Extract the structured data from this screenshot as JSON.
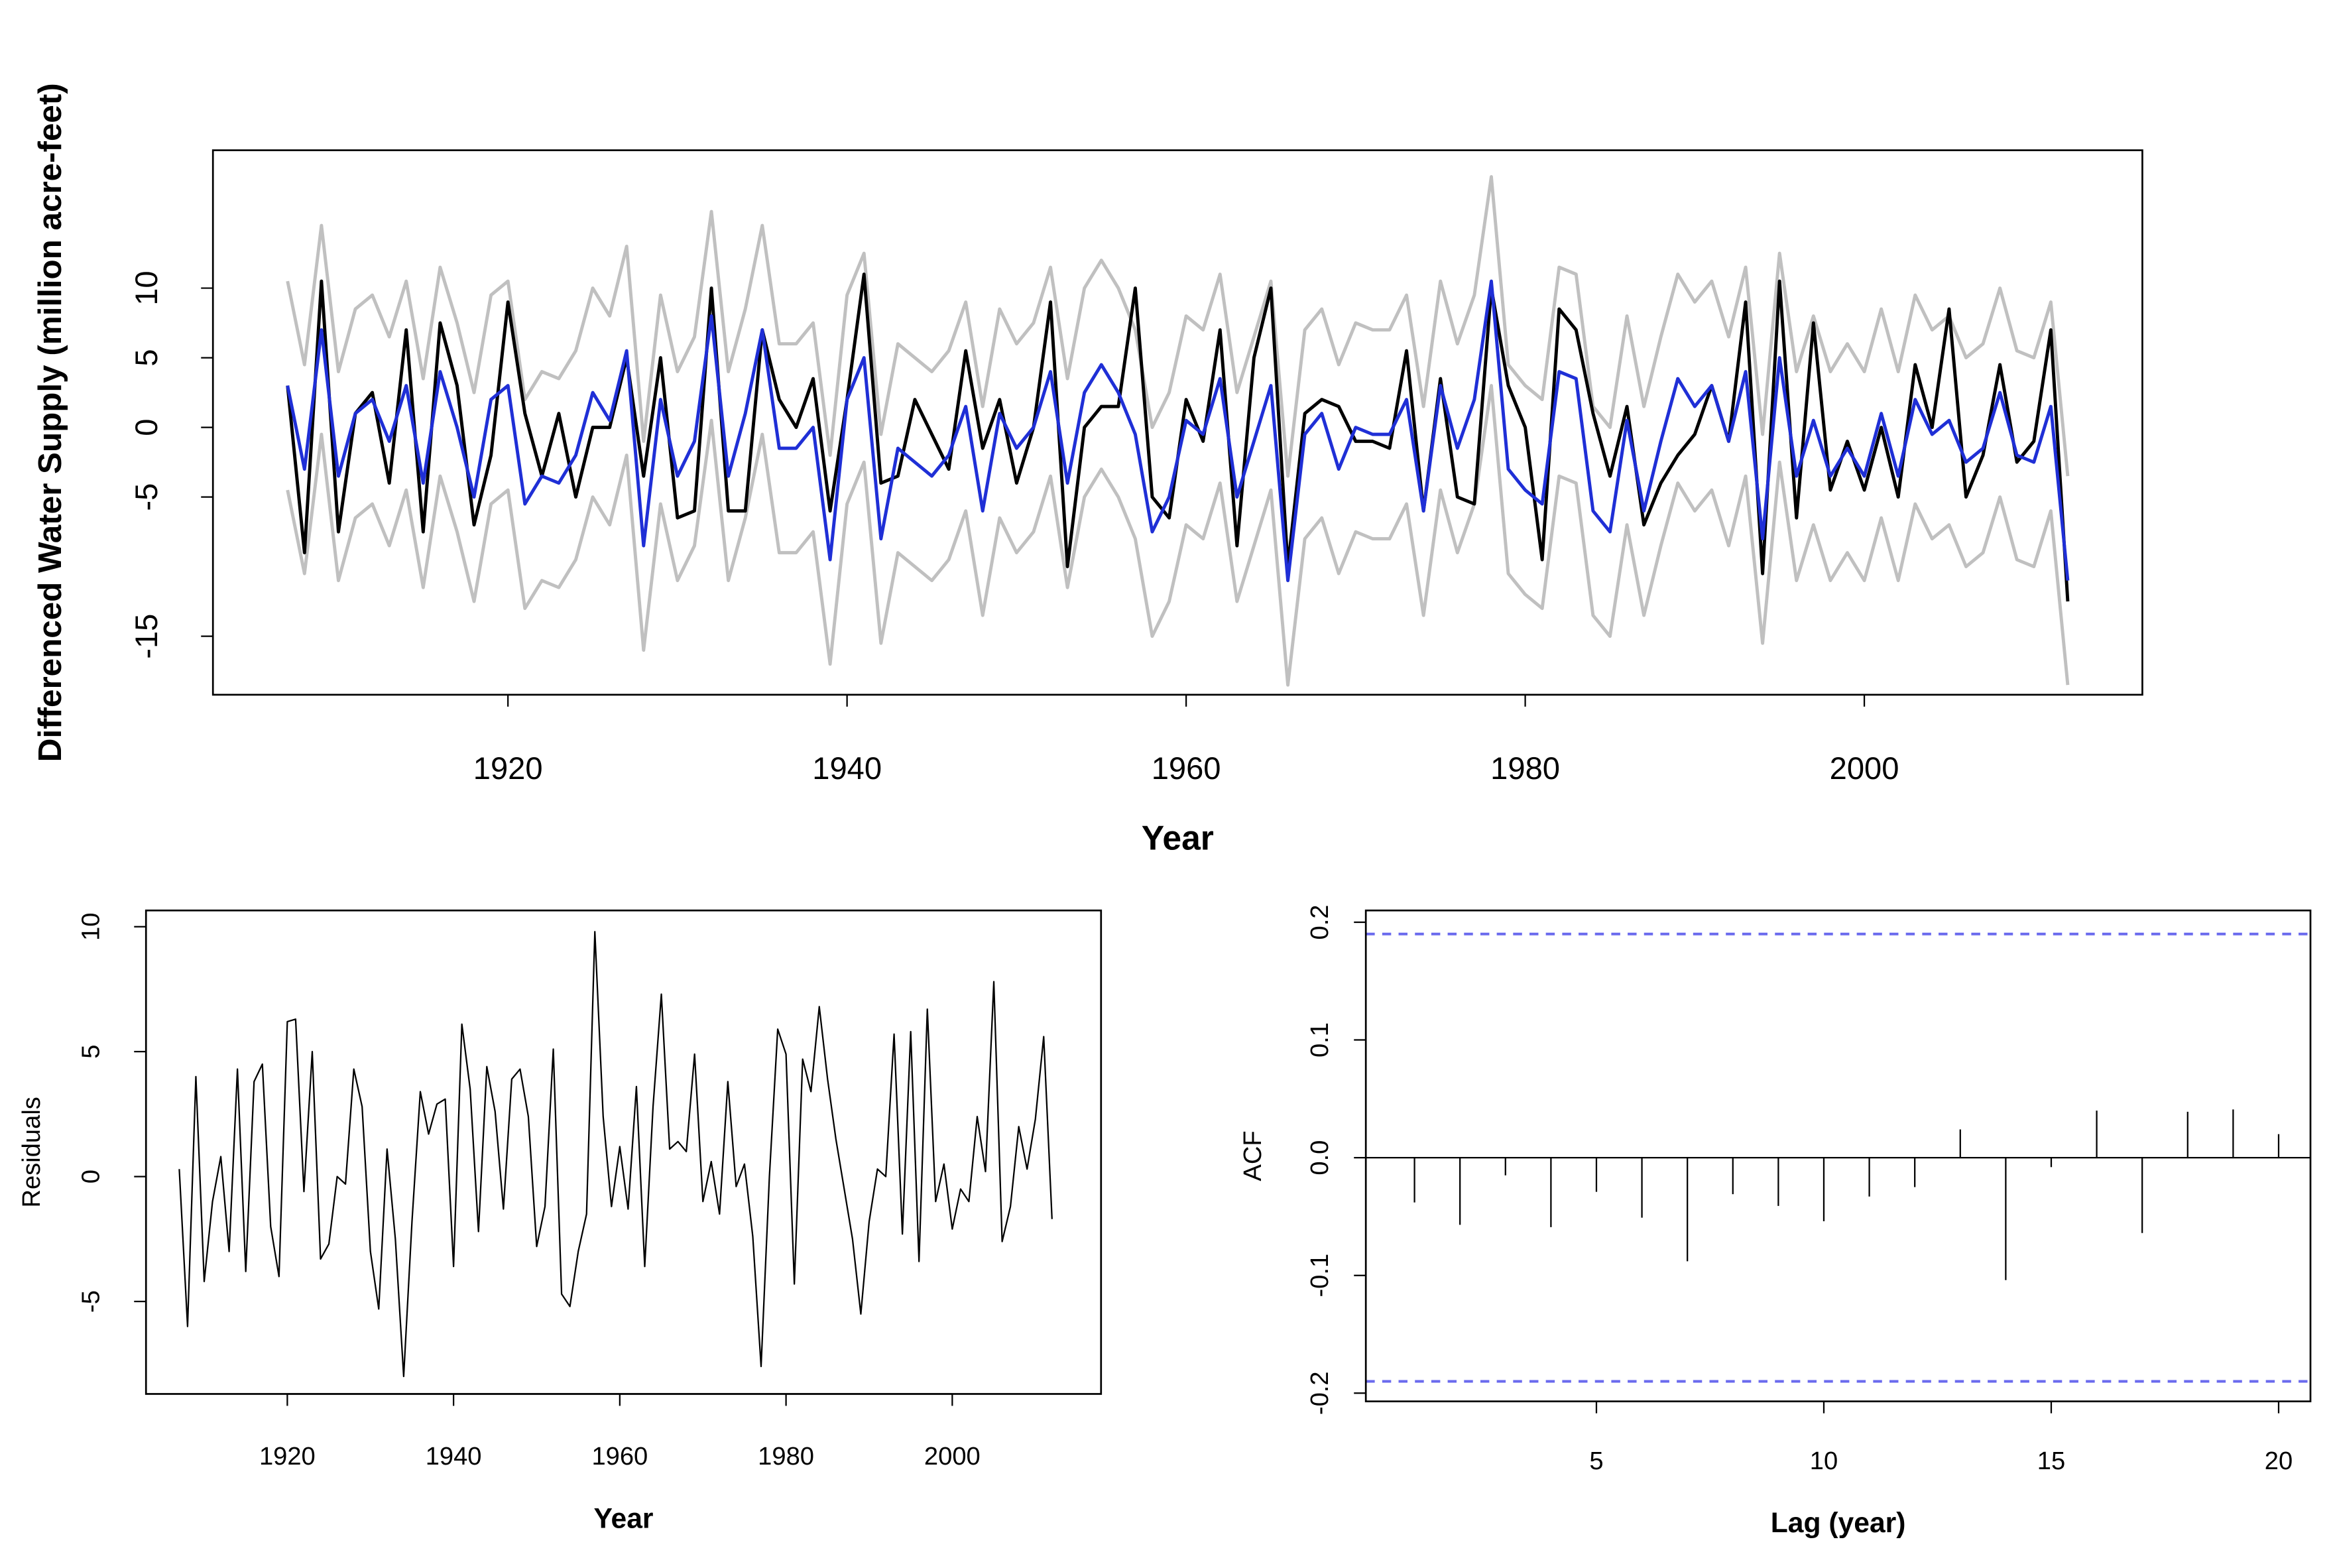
{
  "chart_data": [
    {
      "type": "line",
      "xlabel": "Year",
      "ylabel": "Differenced Water Supply (million acre-feet)",
      "x": [
        1907,
        1908,
        1909,
        1910,
        1911,
        1912,
        1913,
        1914,
        1915,
        1916,
        1917,
        1918,
        1919,
        1920,
        1921,
        1922,
        1923,
        1924,
        1925,
        1926,
        1927,
        1928,
        1929,
        1930,
        1931,
        1932,
        1933,
        1934,
        1935,
        1936,
        1937,
        1938,
        1939,
        1940,
        1941,
        1942,
        1943,
        1944,
        1945,
        1946,
        1947,
        1948,
        1949,
        1950,
        1951,
        1952,
        1953,
        1954,
        1955,
        1956,
        1957,
        1958,
        1959,
        1960,
        1961,
        1962,
        1963,
        1964,
        1965,
        1966,
        1967,
        1968,
        1969,
        1970,
        1971,
        1972,
        1973,
        1974,
        1975,
        1976,
        1977,
        1978,
        1979,
        1980,
        1981,
        1982,
        1983,
        1984,
        1985,
        1986,
        1987,
        1988,
        1989,
        1990,
        1991,
        1992,
        1993,
        1994,
        1995,
        1996,
        1997,
        1998,
        1999,
        2000,
        2001,
        2002,
        2003,
        2004,
        2005,
        2006,
        2007,
        2008,
        2009,
        2010,
        2011,
        2012
      ],
      "series": [
        {
          "color": "#c0c0c0",
          "values": [
            10.5,
            4.5,
            14.5,
            4,
            8.5,
            9.5,
            6.5,
            10.5,
            3.5,
            11.5,
            7.5,
            2.5,
            9.5,
            10.5,
            2,
            4,
            3.5,
            5.5,
            10,
            8,
            13,
            -1,
            9.5,
            4,
            6.5,
            15.5,
            4,
            8.5,
            14.5,
            6,
            6,
            7.5,
            -2,
            9.5,
            12.5,
            -0.5,
            6,
            5,
            4,
            5.5,
            9,
            1.5,
            8.5,
            6,
            7.5,
            11.5,
            3.5,
            10,
            12,
            10,
            7,
            0,
            2.5,
            8,
            7,
            11,
            2.5,
            6.5,
            10.5,
            -3.5,
            7,
            8.5,
            4.5,
            7.5,
            7,
            7,
            9.5,
            1.5,
            10.5,
            6,
            9.5,
            18,
            4.5,
            3,
            2,
            11.5,
            11,
            1.5,
            0,
            8,
            1.5,
            6.5,
            11,
            9,
            10.5,
            6.5,
            11.5,
            -0.5,
            12.5,
            4,
            8,
            4,
            6,
            4,
            8.5,
            4,
            9.5,
            7,
            8,
            5,
            6,
            10,
            5.5,
            5,
            9,
            -3.5
          ]
        },
        {
          "color": "#c0c0c0",
          "values": [
            -4.5,
            -10.5,
            -0.5,
            -11,
            -6.5,
            -5.5,
            -8.5,
            -4.5,
            -11.5,
            -3.5,
            -7.5,
            -12.5,
            -5.5,
            -4.5,
            -13,
            -11,
            -11.5,
            -9.5,
            -5,
            -7,
            -2,
            -16,
            -5.5,
            -11,
            -8.5,
            0.5,
            -11,
            -6.5,
            -0.5,
            -9,
            -9,
            -7.5,
            -17,
            -5.5,
            -2.5,
            -15.5,
            -9,
            -10,
            -11,
            -9.5,
            -6,
            -13.5,
            -6.5,
            -9,
            -7.5,
            -3.5,
            -11.5,
            -5,
            -3,
            -5,
            -8,
            -15,
            -12.5,
            -7,
            -8,
            -4,
            -12.5,
            -8.5,
            -4.5,
            -18.5,
            -8,
            -6.5,
            -10.5,
            -7.5,
            -8,
            -8,
            -5.5,
            -13.5,
            -4.5,
            -9,
            -5.5,
            3,
            -10.5,
            -12,
            -13,
            -3.5,
            -4,
            -13.5,
            -15,
            -7,
            -13.5,
            -8.5,
            -4,
            -6,
            -4.5,
            -8.5,
            -3.5,
            -15.5,
            -2.5,
            -11,
            -7,
            -11,
            -9,
            -11,
            -6.5,
            -11,
            -5.5,
            -8,
            -7,
            -10,
            -9,
            -5,
            -9.5,
            -10,
            -6,
            -18.5
          ]
        },
        {
          "color": "#000000",
          "values": [
            3,
            -9,
            10.5,
            -7.5,
            1,
            2.5,
            -4,
            7,
            -7.5,
            7.5,
            3,
            -7,
            -2,
            9,
            1,
            -3.5,
            1,
            -5,
            0,
            0,
            5,
            -3.5,
            5,
            -6.5,
            -6,
            10,
            -6,
            -6,
            7,
            2,
            0,
            3.5,
            -6,
            2,
            11,
            -4,
            -3.5,
            2,
            -0.5,
            -3,
            5.5,
            -1.5,
            2,
            -4,
            0,
            9,
            -10,
            0,
            1.5,
            1.5,
            10,
            -5,
            -6.5,
            2,
            -1,
            7,
            -8.5,
            5,
            10,
            -10,
            1,
            2,
            1.5,
            -1,
            -1,
            -1.5,
            5.5,
            -6,
            3.5,
            -5,
            -5.5,
            10,
            3,
            0,
            -9.5,
            8.5,
            7,
            1,
            -3.5,
            1.5,
            -7,
            -4,
            -2,
            -0.5,
            3,
            -1,
            9,
            -10.5,
            10.5,
            -6.5,
            7.5,
            -4.5,
            -1,
            -4.5,
            0,
            -5,
            4.5,
            0,
            8.5,
            -5,
            -2,
            4.5,
            -2.5,
            -1,
            7,
            -12.5
          ]
        },
        {
          "color": "#1f2fd6",
          "values": [
            3,
            -3,
            7,
            -3.5,
            1,
            2,
            -1,
            3,
            -4,
            4,
            0,
            -5,
            2,
            3,
            -5.5,
            -3.5,
            -4,
            -2,
            2.5,
            0.5,
            5.5,
            -8.5,
            2,
            -3.5,
            -1,
            8,
            -3.5,
            1,
            7,
            -1.5,
            -1.5,
            0,
            -9.5,
            2,
            5,
            -8,
            -1.5,
            -2.5,
            -3.5,
            -2,
            1.5,
            -6,
            1,
            -1.5,
            0,
            4,
            -4,
            2.5,
            4.5,
            2.5,
            -0.5,
            -7.5,
            -5,
            0.5,
            -0.5,
            3.5,
            -5,
            -1,
            3,
            -11,
            -0.5,
            1,
            -3,
            0,
            -0.5,
            -0.5,
            2,
            -6,
            3,
            -1.5,
            2,
            10.5,
            -3,
            -4.5,
            -5.5,
            4,
            3.5,
            -6,
            -7.5,
            0.5,
            -6,
            -1,
            3.5,
            1.5,
            3,
            -1,
            4,
            -8,
            5,
            -3.5,
            0.5,
            -3.5,
            -1.5,
            -3.5,
            1,
            -3.5,
            2,
            -0.5,
            0.5,
            -2.5,
            -1.5,
            2.5,
            -2,
            -2.5,
            1.5,
            -11
          ]
        }
      ],
      "xlim": [
        1902.6,
        2016.4
      ],
      "xticks": [
        1920,
        1940,
        1960,
        1980,
        2000
      ],
      "ylim": [
        -19.2,
        19.9
      ],
      "yticks": [
        -15,
        -5,
        0,
        5,
        10
      ]
    },
    {
      "type": "line",
      "xlabel": "Year",
      "ylabel": "Residuals",
      "x": [
        1907,
        1908,
        1909,
        1910,
        1911,
        1912,
        1913,
        1914,
        1915,
        1916,
        1917,
        1918,
        1919,
        1920,
        1921,
        1922,
        1923,
        1924,
        1925,
        1926,
        1927,
        1928,
        1929,
        1930,
        1931,
        1932,
        1933,
        1934,
        1935,
        1936,
        1937,
        1938,
        1939,
        1940,
        1941,
        1942,
        1943,
        1944,
        1945,
        1946,
        1947,
        1948,
        1949,
        1950,
        1951,
        1952,
        1953,
        1954,
        1955,
        1956,
        1957,
        1958,
        1959,
        1960,
        1961,
        1962,
        1963,
        1964,
        1965,
        1966,
        1967,
        1968,
        1969,
        1970,
        1971,
        1972,
        1973,
        1974,
        1975,
        1976,
        1977,
        1978,
        1979,
        1980,
        1981,
        1982,
        1983,
        1984,
        1985,
        1986,
        1987,
        1988,
        1989,
        1990,
        1991,
        1992,
        1993,
        1994,
        1995,
        1996,
        1997,
        1998,
        1999,
        2000,
        2001,
        2002,
        2003,
        2004,
        2005,
        2006,
        2007,
        2008,
        2009,
        2010,
        2011,
        2012
      ],
      "series": [
        {
          "color": "#000000",
          "values": [
            0.3,
            -6,
            4,
            -4.2,
            -1,
            0.8,
            -3,
            4.3,
            -3.8,
            3.8,
            4.5,
            -2,
            -4,
            6.2,
            6.3,
            -0.6,
            5,
            -3.3,
            -2.7,
            0,
            -0.3,
            4.3,
            2.8,
            -3,
            -5.3,
            1.1,
            -2.5,
            -8,
            -1.8,
            3.4,
            1.7,
            2.9,
            3.1,
            -3.6,
            6.1,
            3.5,
            -2.2,
            4.4,
            2.6,
            -1.3,
            3.9,
            4.3,
            2.4,
            -2.8,
            -1.2,
            5.1,
            -4.7,
            -5.2,
            -3,
            -1.5,
            9.8,
            2.4,
            -1.2,
            1.2,
            -1.3,
            3.6,
            -3.6,
            2.8,
            7.3,
            1.1,
            1.4,
            1,
            4.9,
            -1,
            0.6,
            -1.5,
            3.8,
            -0.4,
            0.5,
            -2.4,
            -7.6,
            0,
            5.9,
            4.9,
            -4.3,
            4.7,
            3.4,
            6.8,
            3.9,
            1.5,
            -0.5,
            -2.5,
            -5.5,
            -1.8,
            0.3,
            0,
            5.7,
            -2.3,
            5.8,
            -3.4,
            6.7,
            -1,
            0.5,
            -2.1,
            -0.5,
            -1,
            2.4,
            0.2,
            7.8,
            -2.6,
            -1.2,
            2,
            0.3,
            2.3,
            5.6,
            -1.7
          ]
        }
      ],
      "xlim": [
        1903,
        2017.9
      ],
      "xticks": [
        1920,
        1940,
        1960,
        1980,
        2000
      ],
      "ylim": [
        -8.7,
        10.65
      ],
      "yticks": [
        -5,
        0,
        5,
        10
      ]
    },
    {
      "type": "stem",
      "xlabel": "Lag (year)",
      "ylabel": "ACF",
      "x": [
        1,
        2,
        3,
        4,
        5,
        6,
        7,
        8,
        9,
        10,
        11,
        12,
        13,
        14,
        15,
        16,
        17,
        18,
        19,
        20
      ],
      "values": [
        -0.038,
        -0.057,
        -0.015,
        -0.059,
        -0.029,
        -0.051,
        -0.088,
        -0.031,
        -0.041,
        -0.054,
        -0.033,
        -0.025,
        0.024,
        -0.104,
        -0.008,
        0.04,
        -0.064,
        0.039,
        0.041,
        0.02
      ],
      "color": "#000000",
      "confidence_bounds": [
        -0.19,
        0.19
      ],
      "confidence_color": "#6a6aee",
      "xlim": [
        -0.07,
        20.7
      ],
      "xticks": [
        5,
        10,
        15,
        20
      ],
      "ylim": [
        -0.207,
        0.21
      ],
      "yticks": [
        -0.2,
        -0.1,
        {
          "value": 0,
          "label": "0.0"
        },
        0.1,
        0.2
      ]
    }
  ]
}
